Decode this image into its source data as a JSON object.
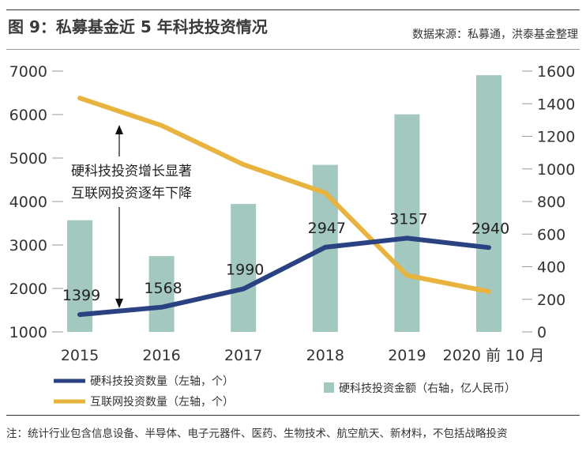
{
  "header": {
    "title": "图 9：私募基金近 5 年科技投资情况",
    "source": "数据来源：私募通，洪泰基金整理"
  },
  "annotation": {
    "line1": "硬科技投资增长显著",
    "line2": "互联网投资逐年下降"
  },
  "footer": {
    "note": "注：统计行业包含信息设备、半导体、电子元器件、医药、生物技术、航空航天、新材料，不包括战略投资"
  },
  "colors": {
    "hard_tech": "#2b4282",
    "internet": "#e8b33e",
    "bars": "#a3c8bf",
    "axis_text": "#333333",
    "grid": "#9a9a9a"
  },
  "chart_data": {
    "type": "bar",
    "categories": [
      "2015",
      "2016",
      "2017",
      "2018",
      "2019",
      "2020 前 10 月"
    ],
    "series": [
      {
        "name": "硬科技投资数量（左轴，个）",
        "type": "line",
        "axis": "left",
        "values": [
          1399,
          1568,
          1990,
          2947,
          3157,
          2940
        ],
        "labels": [
          "1399",
          "1568",
          "1990",
          "2947",
          "3157",
          "2940"
        ]
      },
      {
        "name": "互联网投资数量（左轴，个）",
        "type": "line",
        "axis": "left",
        "values": [
          6380,
          5750,
          4850,
          4200,
          2300,
          1930
        ]
      },
      {
        "name": "硬科技投资金额（右轴，亿人民币）",
        "type": "bar",
        "axis": "right",
        "values": [
          685,
          465,
          785,
          1025,
          1335,
          1575
        ]
      }
    ],
    "left_axis": {
      "ylim": [
        1000,
        7000
      ],
      "ticks": [
        "1000",
        "2000",
        "3000",
        "4000",
        "5000",
        "6000",
        "7000"
      ]
    },
    "right_axis": {
      "ylim": [
        0,
        1600
      ],
      "ticks": [
        "0",
        "200",
        "400",
        "600",
        "800",
        "1000",
        "1200",
        "1400",
        "1600"
      ]
    },
    "legend_position": "bottom"
  }
}
